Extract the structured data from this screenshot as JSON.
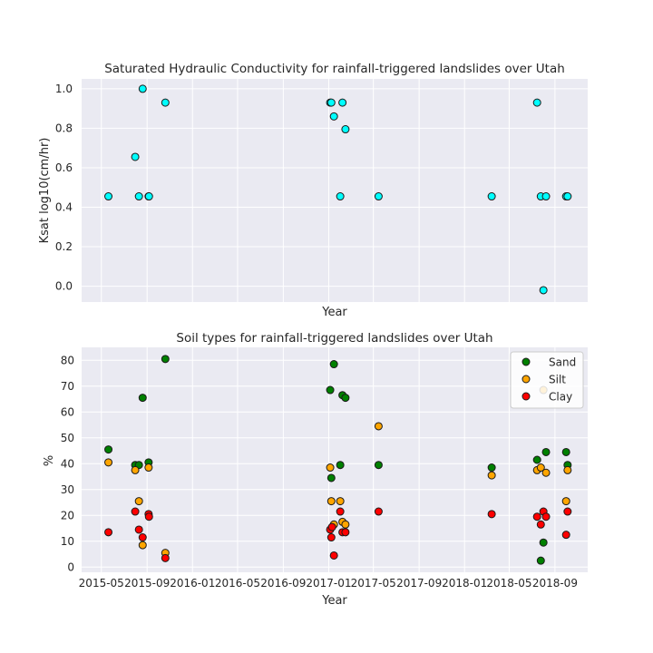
{
  "chart_data": [
    {
      "type": "scatter",
      "title": "Saturated Hydraulic Conductivity for rainfall-triggered landslides over Utah",
      "xlabel": "Year",
      "ylabel": "Ksat log10(cm/hr)",
      "ylim": [
        -0.08,
        1.05
      ],
      "yticks": [
        "0.0",
        "0.2",
        "0.4",
        "0.6",
        "0.8",
        "1.0"
      ],
      "grid": true,
      "series": [
        {
          "color": "#00ffff",
          "points": [
            {
              "x": "2015-05-20",
              "y": 0.455
            },
            {
              "x": "2015-07-31",
              "y": 0.655
            },
            {
              "x": "2015-08-10",
              "y": 0.455
            },
            {
              "x": "2015-08-20",
              "y": 1.0
            },
            {
              "x": "2015-09-05",
              "y": 0.455
            },
            {
              "x": "2015-09-06",
              "y": 0.455
            },
            {
              "x": "2015-10-20",
              "y": 0.93
            },
            {
              "x": "2017-01-05",
              "y": 0.93
            },
            {
              "x": "2017-01-08",
              "y": 0.93
            },
            {
              "x": "2017-01-15",
              "y": 0.86
            },
            {
              "x": "2017-02-01",
              "y": 0.455
            },
            {
              "x": "2017-02-07",
              "y": 0.93
            },
            {
              "x": "2017-02-15",
              "y": 0.795
            },
            {
              "x": "2017-05-15",
              "y": 0.455
            },
            {
              "x": "2018-03-15",
              "y": 0.455
            },
            {
              "x": "2018-07-15",
              "y": 0.93
            },
            {
              "x": "2018-07-25",
              "y": 0.455
            },
            {
              "x": "2018-08-01",
              "y": -0.02
            },
            {
              "x": "2018-08-08",
              "y": 0.455
            },
            {
              "x": "2018-10-01",
              "y": 0.455
            },
            {
              "x": "2018-10-05",
              "y": 0.455
            }
          ]
        }
      ]
    },
    {
      "type": "scatter",
      "title": "Soil types for rainfall-triggered landslides over Utah",
      "xlabel": "Year",
      "ylabel": "%",
      "ylim": [
        -2,
        85
      ],
      "yticks": [
        "0",
        "10",
        "20",
        "30",
        "40",
        "50",
        "60",
        "70",
        "80"
      ],
      "xticks": [
        "2015-05",
        "2015-09",
        "2016-01",
        "2016-05",
        "2016-09",
        "2017-01",
        "2017-05",
        "2017-09",
        "2018-01",
        "2018-05",
        "2018-09"
      ],
      "grid": true,
      "legend": "top-right",
      "series": [
        {
          "name": "Sand",
          "color": "#008000",
          "points": [
            {
              "x": "2015-05-20",
              "y": 45.5
            },
            {
              "x": "2015-07-31",
              "y": 39.5
            },
            {
              "x": "2015-08-10",
              "y": 39.5
            },
            {
              "x": "2015-08-20",
              "y": 65.5
            },
            {
              "x": "2015-09-05",
              "y": 40.5
            },
            {
              "x": "2015-10-20",
              "y": 80.5
            },
            {
              "x": "2017-01-05",
              "y": 68.5
            },
            {
              "x": "2017-01-08",
              "y": 34.5
            },
            {
              "x": "2017-01-15",
              "y": 78.5
            },
            {
              "x": "2017-02-01",
              "y": 39.5
            },
            {
              "x": "2017-02-07",
              "y": 66.5
            },
            {
              "x": "2017-02-15",
              "y": 65.5
            },
            {
              "x": "2017-05-15",
              "y": 39.5
            },
            {
              "x": "2018-03-15",
              "y": 38.5
            },
            {
              "x": "2018-07-15",
              "y": 41.5
            },
            {
              "x": "2018-07-25",
              "y": 2.5
            },
            {
              "x": "2018-08-01",
              "y": 9.5
            },
            {
              "x": "2018-08-08",
              "y": 44.5
            },
            {
              "x": "2018-10-01",
              "y": 44.5
            },
            {
              "x": "2018-10-05",
              "y": 39.5
            }
          ]
        },
        {
          "name": "Silt",
          "color": "#ffa500",
          "points": [
            {
              "x": "2015-05-20",
              "y": 40.5
            },
            {
              "x": "2015-07-31",
              "y": 37.5
            },
            {
              "x": "2015-08-10",
              "y": 25.5
            },
            {
              "x": "2015-08-20",
              "y": 8.5
            },
            {
              "x": "2015-09-05",
              "y": 38.5
            },
            {
              "x": "2015-10-20",
              "y": 5.5
            },
            {
              "x": "2017-01-05",
              "y": 38.5
            },
            {
              "x": "2017-01-08",
              "y": 25.5
            },
            {
              "x": "2017-01-15",
              "y": 16.5
            },
            {
              "x": "2017-02-01",
              "y": 25.5
            },
            {
              "x": "2017-02-07",
              "y": 17.5
            },
            {
              "x": "2017-02-15",
              "y": 16.5
            },
            {
              "x": "2017-05-15",
              "y": 54.5
            },
            {
              "x": "2018-03-15",
              "y": 35.5
            },
            {
              "x": "2018-07-15",
              "y": 37.5
            },
            {
              "x": "2018-07-25",
              "y": 38.5
            },
            {
              "x": "2018-08-01",
              "y": 68.5
            },
            {
              "x": "2018-08-08",
              "y": 36.5
            },
            {
              "x": "2018-10-01",
              "y": 25.5
            },
            {
              "x": "2018-10-05",
              "y": 37.5
            }
          ]
        },
        {
          "name": "Clay",
          "color": "#ff0000",
          "points": [
            {
              "x": "2015-05-20",
              "y": 13.5
            },
            {
              "x": "2015-07-31",
              "y": 21.5
            },
            {
              "x": "2015-08-10",
              "y": 14.5
            },
            {
              "x": "2015-08-20",
              "y": 11.5
            },
            {
              "x": "2015-09-05",
              "y": 20.5
            },
            {
              "x": "2015-09-06",
              "y": 19.5
            },
            {
              "x": "2015-10-20",
              "y": 3.5
            },
            {
              "x": "2017-01-05",
              "y": 14.5
            },
            {
              "x": "2017-01-08",
              "y": 11.5
            },
            {
              "x": "2017-01-15",
              "y": 4.5
            },
            {
              "x": "2017-02-01",
              "y": 21.5
            },
            {
              "x": "2017-02-07",
              "y": 13.5
            },
            {
              "x": "2017-02-15",
              "y": 13.5
            },
            {
              "x": "2017-01-10",
              "y": 15.5
            },
            {
              "x": "2017-05-15",
              "y": 21.5
            },
            {
              "x": "2018-03-15",
              "y": 20.5
            },
            {
              "x": "2018-07-15",
              "y": 19.5
            },
            {
              "x": "2018-07-25",
              "y": 16.5
            },
            {
              "x": "2018-08-01",
              "y": 21.5
            },
            {
              "x": "2018-08-08",
              "y": 19.5
            },
            {
              "x": "2018-10-05",
              "y": 21.5
            },
            {
              "x": "2018-10-01",
              "y": 12.5
            }
          ]
        }
      ]
    }
  ]
}
